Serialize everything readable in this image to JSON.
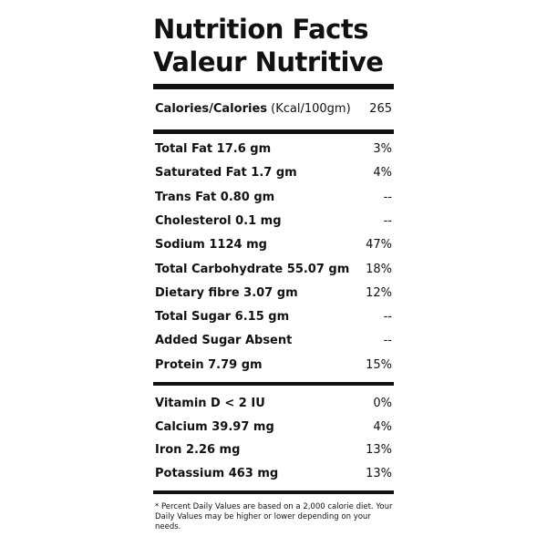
{
  "title": [
    "Nutrition Facts",
    "Valeur Nutritive"
  ],
  "calories": {
    "label": "Calories/Calories",
    "unit": "(Kcal/100gm)",
    "value": "265"
  },
  "nutrients": [
    {
      "label": "Total Fat 17.6 gm",
      "dv": "3%"
    },
    {
      "label": "Saturated Fat 1.7 gm",
      "dv": "4%"
    },
    {
      "label": "Trans Fat 0.80 gm",
      "dv": "--"
    },
    {
      "label": "Cholesterol 0.1 mg",
      "dv": "--"
    },
    {
      "label": "Sodium 1124 mg",
      "dv": "47%"
    },
    {
      "label": "Total Carbohydrate 55.07 gm",
      "dv": "18%"
    },
    {
      "label": "Dietary fibre 3.07 gm",
      "dv": "12%"
    },
    {
      "label": "Total Sugar 6.15 gm",
      "dv": "--"
    },
    {
      "label": "Added Sugar Absent",
      "dv": "--"
    },
    {
      "label": "Protein 7.79 gm",
      "dv": "15%"
    }
  ],
  "minerals": [
    {
      "label": "Vitamin D < 2 IU",
      "dv": "0%"
    },
    {
      "label": "Calcium 39.97 mg",
      "dv": "4%"
    },
    {
      "label": "Iron 2.26 mg",
      "dv": "13%"
    },
    {
      "label": "Potassium 463 mg",
      "dv": "13%"
    }
  ],
  "footnote": "* Percent Daily Values are based on a 2,000 calorie diet. Your Daily Values may be higher or lower depending on your needs."
}
